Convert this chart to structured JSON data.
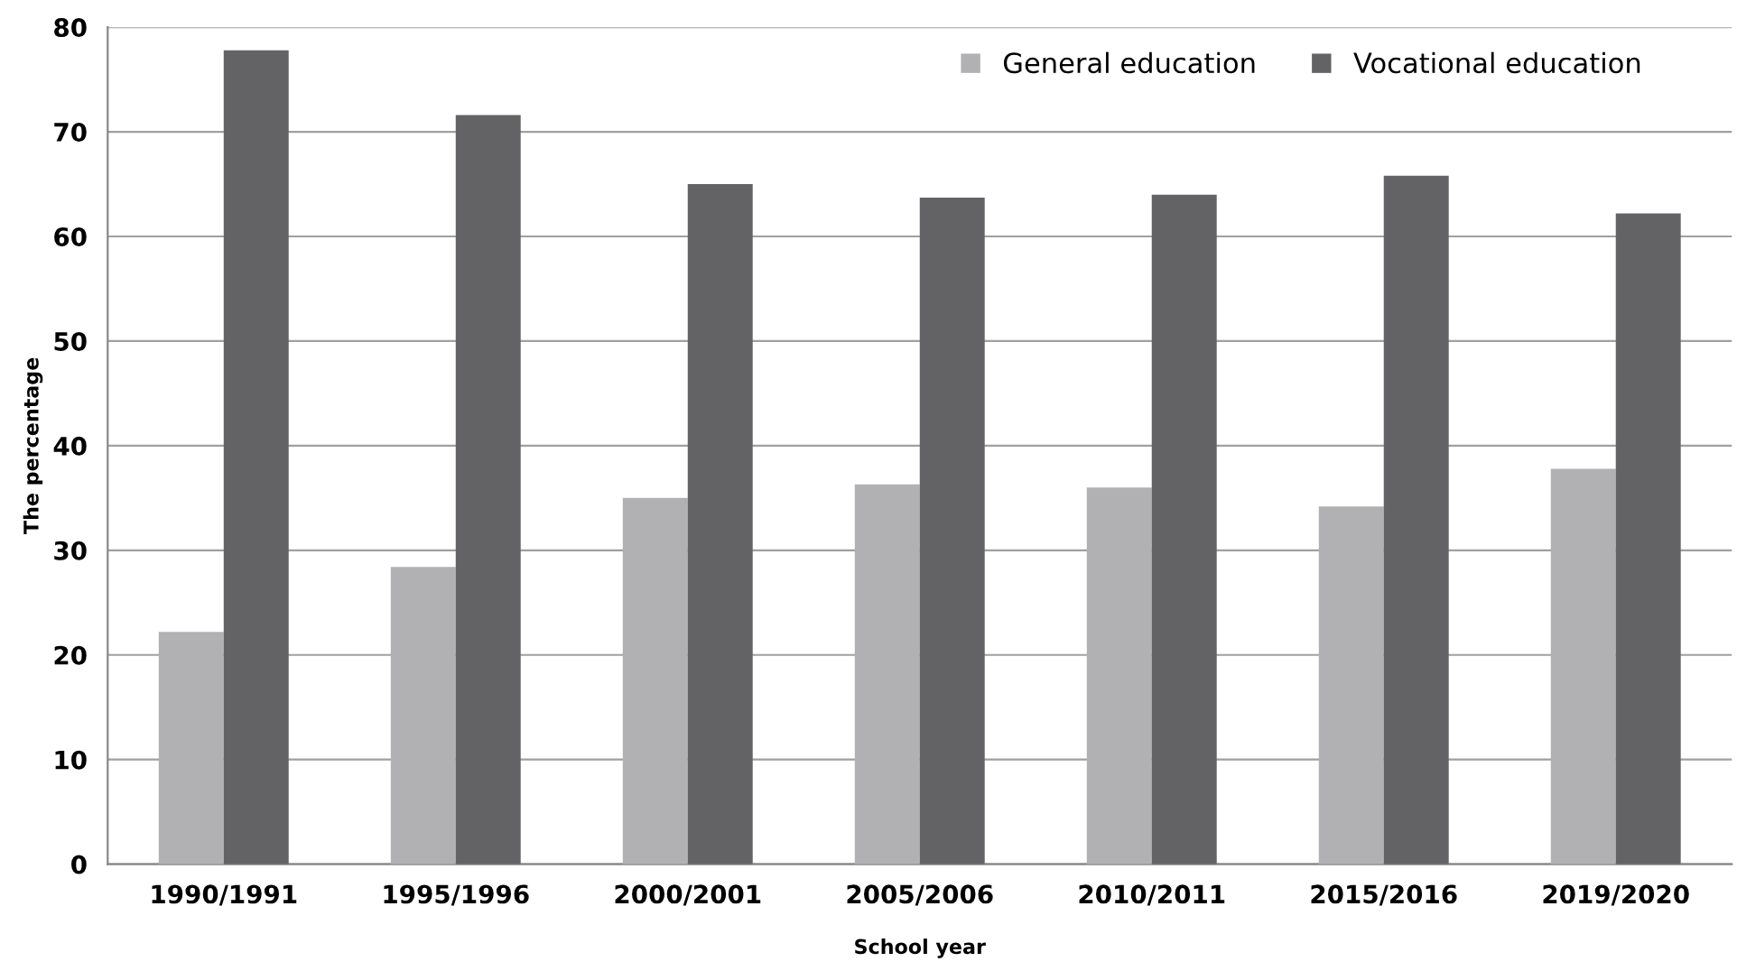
{
  "chart_data": {
    "type": "bar",
    "xlabel": "School year",
    "ylabel": "The percentage",
    "categories": [
      "1990/1991",
      "1995/1996",
      "2000/2001",
      "2005/2006",
      "2010/2011",
      "2015/2016",
      "2019/2020"
    ],
    "series": [
      {
        "name": "General education",
        "color": "#b1b1b4",
        "values": [
          22.2,
          28.4,
          35.0,
          36.3,
          36.0,
          34.2,
          37.8
        ]
      },
      {
        "name": "Vocational education",
        "color": "#636365",
        "values": [
          77.8,
          71.6,
          65.0,
          63.7,
          64.0,
          65.8,
          62.2
        ]
      }
    ],
    "ylim": [
      0,
      80
    ],
    "yticks": [
      0,
      10,
      20,
      30,
      40,
      50,
      60,
      70,
      80
    ],
    "grid": "y",
    "legend": "top right"
  }
}
